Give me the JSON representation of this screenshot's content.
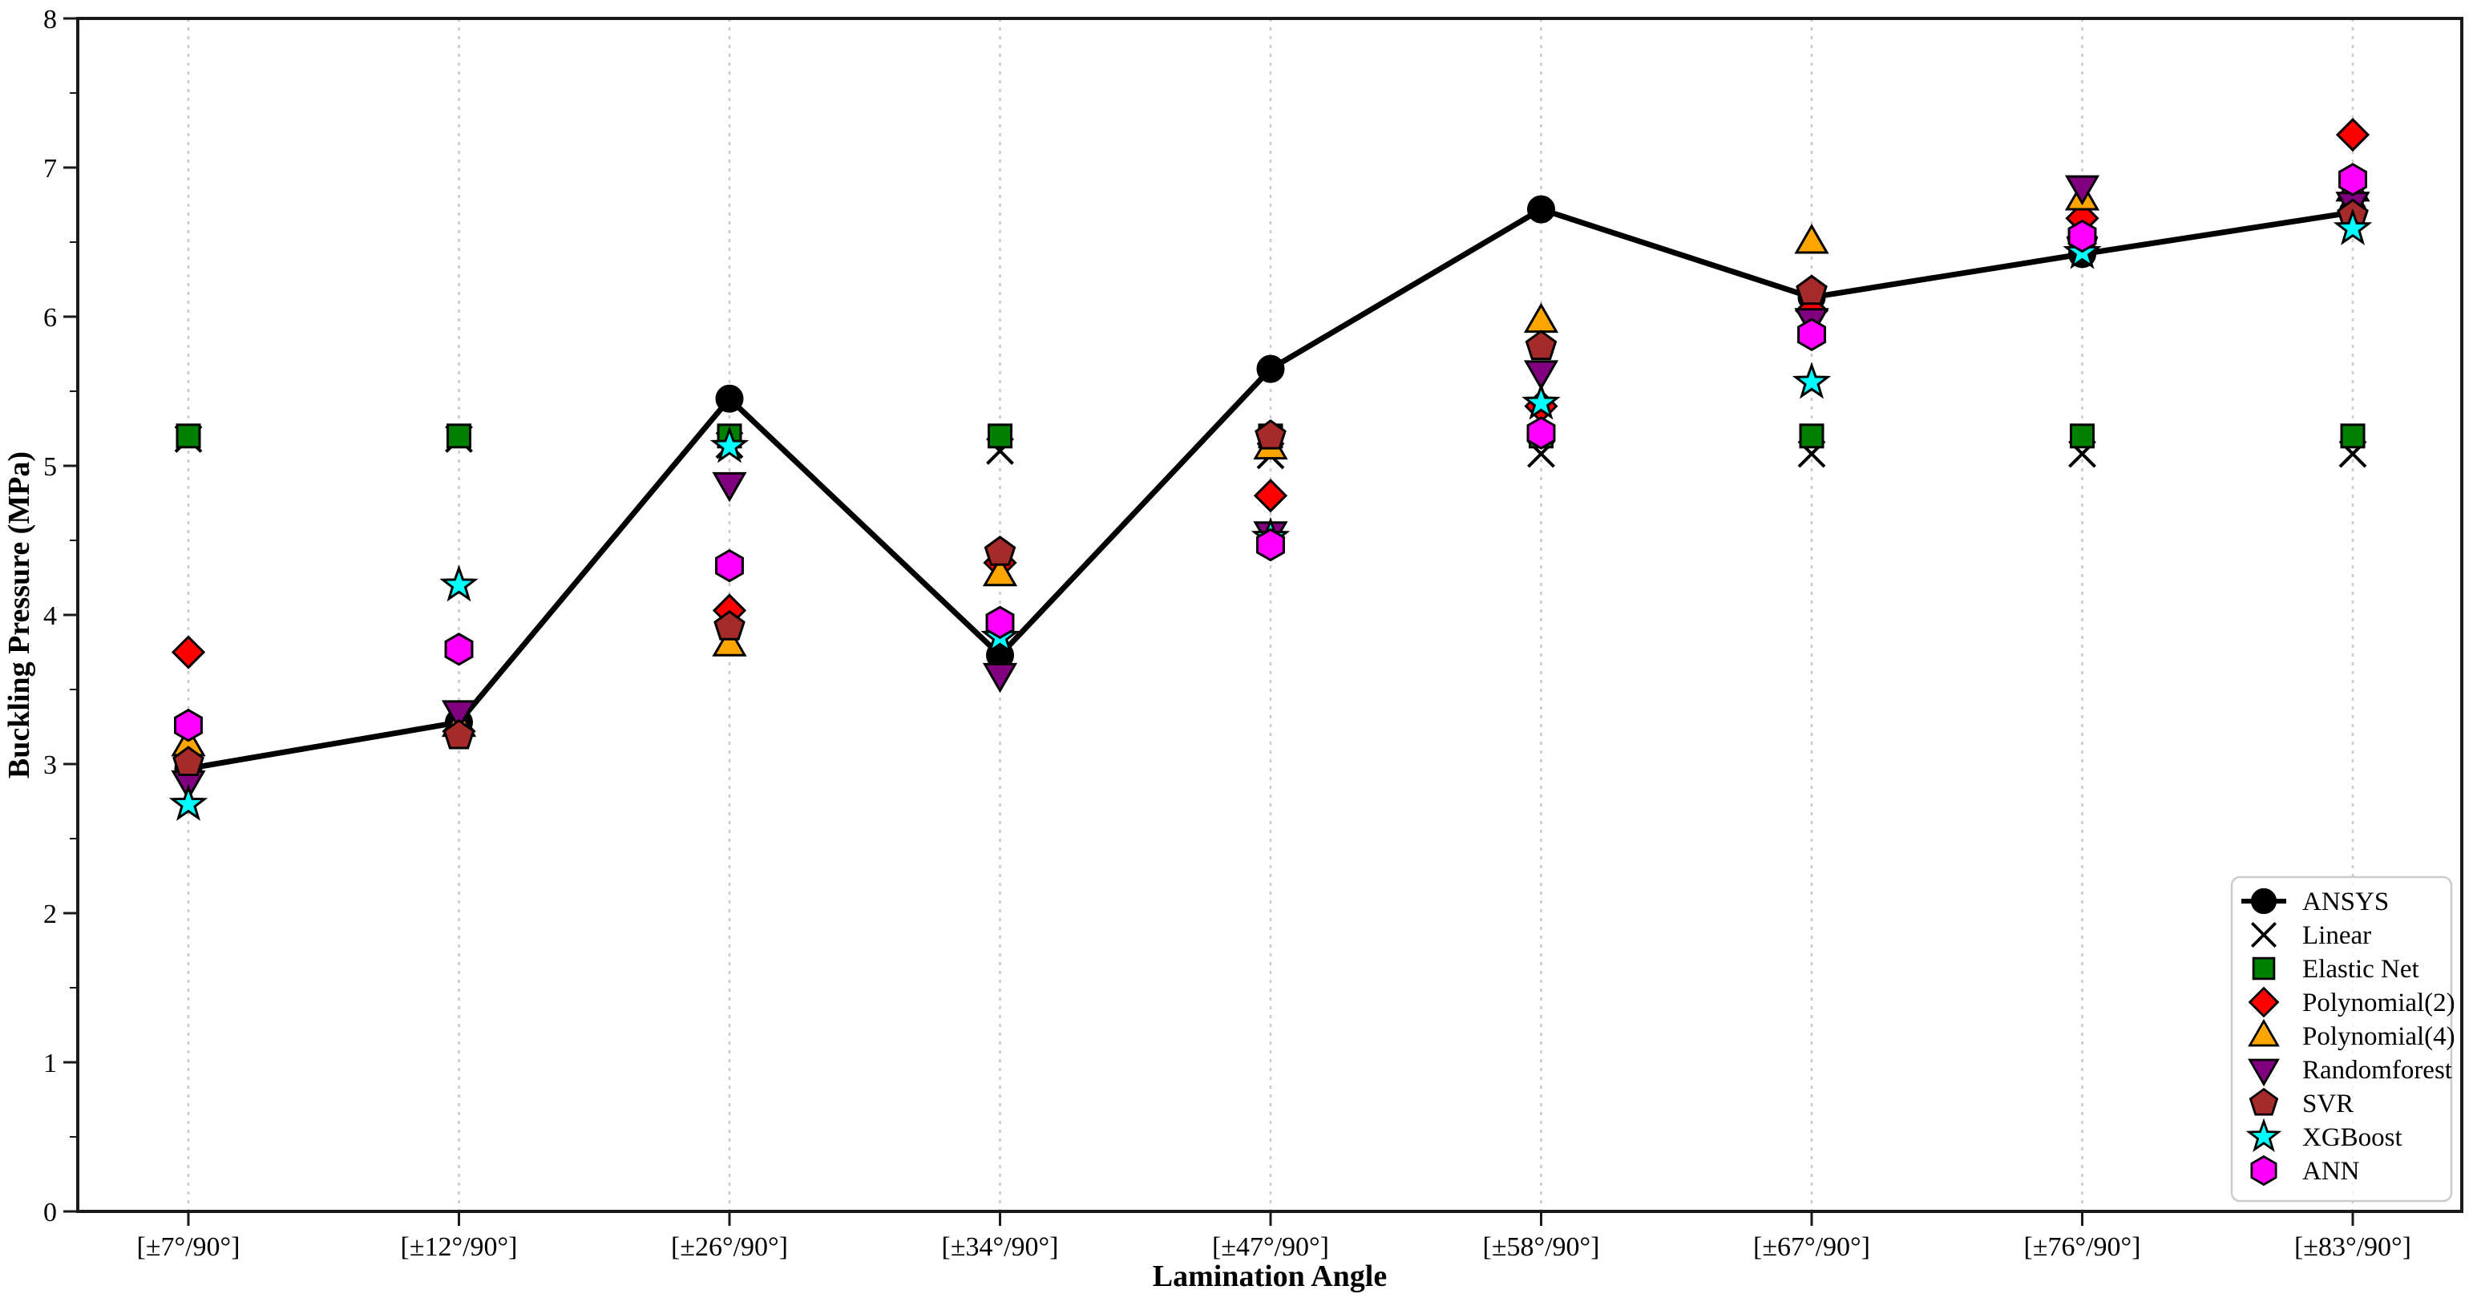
{
  "chart_data": {
    "type": "scatter",
    "subtype": "scatter markers per category with one connected line series",
    "title": "",
    "xlabel": "Lamination Angle",
    "ylabel": "Buckling Pressure (MPa)",
    "categories": [
      "[±7°/90°]",
      "[±12°/90°]",
      "[±26°/90°]",
      "[±34°/90°]",
      "[±47°/90°]",
      "[±58°/90°]",
      "[±67°/90°]",
      "[±76°/90°]",
      "[±83°/90°]"
    ],
    "y_ticks": [
      0,
      1,
      2,
      3,
      4,
      5,
      6,
      7,
      8
    ],
    "ylim": [
      0,
      8
    ],
    "grid": "vertical dashed gridlines only",
    "legend_position": "lower right",
    "axis_color": "#1a1a1a",
    "gridline_color": "#c9c9c9",
    "series": [
      {
        "name": "ANSYS",
        "marker": "circle",
        "color": "#000000",
        "line": true,
        "values": [
          2.97,
          3.28,
          5.45,
          3.73,
          5.65,
          6.72,
          6.13,
          6.42,
          6.7
        ]
      },
      {
        "name": "Linear",
        "marker": "x",
        "color": "#000000",
        "values": [
          5.18,
          5.18,
          5.14,
          5.1,
          5.07,
          5.08,
          5.08,
          5.08,
          5.08
        ]
      },
      {
        "name": "Elastic Net",
        "marker": "square",
        "color": "#008000",
        "values": [
          5.2,
          5.2,
          5.2,
          5.2,
          5.2,
          5.2,
          5.2,
          5.2,
          5.2
        ]
      },
      {
        "name": "Polynomial(2)",
        "marker": "diamond",
        "color": "#FF0000",
        "values": [
          3.75,
          3.22,
          4.03,
          4.35,
          4.8,
          5.4,
          6.04,
          6.66,
          7.22
        ]
      },
      {
        "name": "Polynomial(4)",
        "marker": "triangle-up",
        "color": "#FFA500",
        "values": [
          3.13,
          3.26,
          3.8,
          4.27,
          5.12,
          5.97,
          6.5,
          6.79,
          6.85
        ]
      },
      {
        "name": "Randomforest",
        "marker": "triangle-down",
        "color": "#800080",
        "values": [
          2.88,
          3.35,
          4.88,
          3.6,
          4.55,
          5.63,
          5.98,
          6.87,
          6.76
        ]
      },
      {
        "name": "SVR",
        "marker": "pentagon",
        "color": "#A52A2A",
        "values": [
          3.01,
          3.19,
          3.92,
          4.42,
          5.2,
          5.8,
          6.17,
          6.5,
          6.68
        ]
      },
      {
        "name": "XGBoost",
        "marker": "star",
        "color": "#00FFFF",
        "values": [
          2.73,
          4.2,
          5.13,
          3.85,
          4.52,
          5.42,
          5.56,
          6.43,
          6.59
        ]
      },
      {
        "name": "ANN",
        "marker": "hexagon",
        "color": "#FF00FF",
        "values": [
          3.26,
          3.77,
          4.33,
          3.95,
          4.47,
          5.22,
          5.88,
          6.54,
          6.92
        ]
      }
    ]
  }
}
